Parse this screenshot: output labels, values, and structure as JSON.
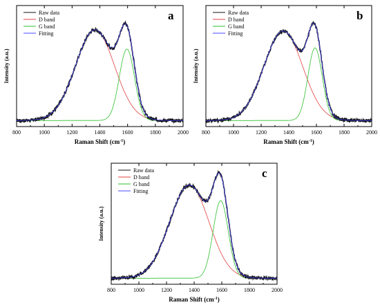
{
  "chart_data": [
    {
      "type": "line",
      "panel_label": "a",
      "xlabel": "Raman Shift (cm",
      "xlabel_sup": "-1",
      "xlabel_close": ")",
      "ylabel": "Intensity (a.u.)",
      "xlim": [
        800,
        2000
      ],
      "ylim": [
        0,
        1.0
      ],
      "x_ticks": [
        "800",
        "1000",
        "1200",
        "1400",
        "1600",
        "1800",
        "2000"
      ],
      "legend": {
        "position": "top-left",
        "entries": [
          "Raw data",
          "D band",
          "G band",
          "Fitting"
        ]
      },
      "components": {
        "baseline": 0.05,
        "D": {
          "center": 1365,
          "height": 0.75,
          "width": 140
        },
        "G": {
          "center": 1595,
          "height": 0.59,
          "width": 55
        }
      },
      "series": [
        {
          "name": "Raw data",
          "color": "#111111",
          "x": [
            800,
            900,
            1000,
            1100,
            1200,
            1250,
            1300,
            1350,
            1365,
            1400,
            1450,
            1500,
            1550,
            1590,
            1600,
            1650,
            1700,
            1750,
            1800,
            1850,
            1900,
            2000
          ],
          "values": [
            0.07,
            0.07,
            0.08,
            0.13,
            0.3,
            0.47,
            0.66,
            0.8,
            0.82,
            0.72,
            0.68,
            0.62,
            0.74,
            0.82,
            0.8,
            0.52,
            0.28,
            0.12,
            0.08,
            0.06,
            0.05,
            0.05
          ]
        },
        {
          "name": "D band",
          "color": "#e04040",
          "x": [
            800,
            900,
            1000,
            1100,
            1200,
            1250,
            1300,
            1350,
            1365,
            1400,
            1450,
            1500,
            1550,
            1600,
            1650,
            1700,
            1800,
            1900,
            2000
          ],
          "values": [
            0.05,
            0.06,
            0.08,
            0.16,
            0.34,
            0.5,
            0.64,
            0.78,
            0.8,
            0.76,
            0.63,
            0.46,
            0.3,
            0.17,
            0.1,
            0.07,
            0.05,
            0.05,
            0.05
          ]
        }
      ]
    },
    {
      "type": "line",
      "panel_label": "b",
      "xlabel": "Raman Shift (cm",
      "xlabel_sup": "-1",
      "xlabel_close": ")",
      "ylabel": "Intensity (a.u.)",
      "xlim": [
        800,
        2000
      ],
      "ylim": [
        0,
        1.0
      ],
      "x_ticks": [
        "800",
        "1000",
        "1200",
        "1400",
        "1600",
        "1800",
        "2000"
      ],
      "legend": {
        "position": "top-left",
        "entries": [
          "Raw data",
          "D band",
          "G band",
          "Fitting"
        ]
      },
      "components": {
        "baseline": 0.05,
        "D": {
          "center": 1360,
          "height": 0.74,
          "width": 140
        },
        "G": {
          "center": 1590,
          "height": 0.6,
          "width": 52
        }
      },
      "series": []
    },
    {
      "type": "line",
      "panel_label": "c",
      "xlabel": "Raman Shift (cm",
      "xlabel_sup": "-1",
      "xlabel_close": ")",
      "ylabel": "Intensity (a.u.)",
      "xlim": [
        800,
        2000
      ],
      "ylim": [
        0,
        1.0
      ],
      "x_ticks": [
        "800",
        "1000",
        "1200",
        "1400",
        "1600",
        "1800",
        "2000"
      ],
      "legend": {
        "position": "top-left",
        "entries": [
          "Raw data",
          "D band",
          "G band",
          "Fitting"
        ]
      },
      "components": {
        "baseline": 0.05,
        "D": {
          "center": 1365,
          "height": 0.77,
          "width": 142
        },
        "G": {
          "center": 1592,
          "height": 0.64,
          "width": 55
        }
      },
      "series": []
    }
  ],
  "colors": {
    "raw": "#111111",
    "d_band": "#e04040",
    "g_band": "#2ec02e",
    "fitting": "#4a4aff",
    "axis": "#000000"
  }
}
